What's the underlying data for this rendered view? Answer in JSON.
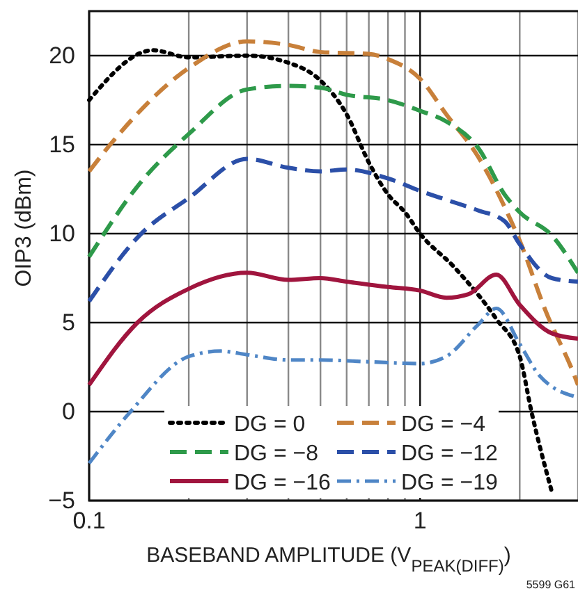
{
  "chart_data": {
    "type": "line",
    "xlabel": "BASEBAND AMPLITUDE (V$_{PEAK(DIFF)}$)",
    "ylabel": "OIP3 (dBm)",
    "log": "x",
    "grid": true,
    "legend": "bottom",
    "xlim": [
      0.1,
      3
    ],
    "ylim": [
      -5,
      22.5
    ],
    "xticks": [
      0.1,
      {
        "value": 0.2,
        "label": null
      },
      {
        "value": 0.3,
        "label": null
      },
      {
        "value": 0.4,
        "label": null
      },
      {
        "value": 0.5,
        "label": null
      },
      {
        "value": 0.6,
        "label": null
      },
      {
        "value": 0.7,
        "label": null
      },
      {
        "value": 0.8,
        "label": null
      },
      {
        "value": 0.9,
        "label": null
      },
      1,
      {
        "value": 2,
        "label": null
      },
      {
        "value": 3,
        "label": null
      }
    ],
    "yticks": [
      -5,
      0,
      5,
      10,
      15,
      20
    ],
    "annotations": [
      "5599 G61"
    ],
    "series": [
      {
        "name": "DG = 0",
        "color": "#000000",
        "line_style": "dotted",
        "x": [
          0.1,
          0.156,
          0.2,
          0.3,
          0.4,
          0.5,
          0.6,
          0.7,
          0.8,
          0.9,
          1.0,
          1.27,
          1.7,
          2.0,
          2.17,
          2.5
        ],
        "values": [
          17.5,
          20.3,
          19.9,
          20.0,
          19.6,
          18.6,
          16.7,
          14.0,
          12.2,
          11.2,
          10.0,
          8.1,
          5.2,
          3.1,
          0,
          -4.5
        ]
      },
      {
        "name": "DG = −4",
        "color": "#c8803a",
        "line_style": "dashed",
        "x": [
          0.1,
          0.117,
          0.2,
          0.3,
          0.4,
          0.5,
          0.7,
          0.8,
          1.0,
          1.2,
          1.5,
          1.8,
          2.0,
          2.39,
          2.93,
          3.0
        ],
        "values": [
          13.5,
          15.1,
          19.3,
          20.8,
          20.6,
          20.2,
          20.1,
          19.8,
          18.7,
          16.7,
          14.3,
          11.5,
          9.6,
          5.7,
          2.0,
          1.5
        ]
      },
      {
        "name": "DG = −8",
        "color": "#2e9a4a",
        "line_style": "dashed",
        "x": [
          0.1,
          0.142,
          0.2,
          0.3,
          0.4,
          0.5,
          0.6,
          0.8,
          1.0,
          1.2,
          1.5,
          1.8,
          2.0,
          2.5,
          3.0
        ],
        "values": [
          8.7,
          12.8,
          15.6,
          18.1,
          18.3,
          18.2,
          17.8,
          17.5,
          16.9,
          16.3,
          14.8,
          12.2,
          11.2,
          9.9,
          7.8
        ]
      },
      {
        "name": "DG = −12",
        "color": "#2b4fa8",
        "line_style": "dashed",
        "x": [
          0.1,
          0.142,
          0.2,
          0.3,
          0.4,
          0.5,
          0.6,
          0.8,
          1.0,
          1.2,
          1.5,
          1.8,
          2.0,
          2.5,
          3.0
        ],
        "values": [
          6.2,
          9.9,
          12.0,
          14.2,
          13.7,
          13.5,
          13.6,
          13.1,
          12.4,
          11.9,
          11.3,
          10.7,
          9.4,
          7.5,
          7.3
        ]
      },
      {
        "name": "DG = −16",
        "color": "#a0153e",
        "line_style": "solid",
        "x": [
          0.1,
          0.14,
          0.2,
          0.3,
          0.4,
          0.5,
          0.6,
          0.8,
          1.0,
          1.2,
          1.4,
          1.7,
          2.0,
          2.5,
          3.0
        ],
        "values": [
          1.5,
          5.0,
          6.9,
          7.8,
          7.4,
          7.5,
          7.3,
          7.0,
          6.8,
          6.4,
          6.6,
          7.7,
          6.0,
          4.4,
          4.1
        ]
      },
      {
        "name": "DG = −19",
        "color": "#4f86c6",
        "line_style": "dashdot",
        "x": [
          0.1,
          0.132,
          0.2,
          0.25,
          0.3,
          0.4,
          0.5,
          0.7,
          1.0,
          1.2,
          1.5,
          1.7,
          2.0,
          2.3,
          3.0
        ],
        "values": [
          -2.9,
          -0.1,
          3.1,
          3.4,
          3.2,
          2.9,
          2.9,
          2.8,
          2.7,
          3.1,
          4.9,
          5.8,
          3.8,
          2.0,
          0.8
        ]
      }
    ]
  }
}
